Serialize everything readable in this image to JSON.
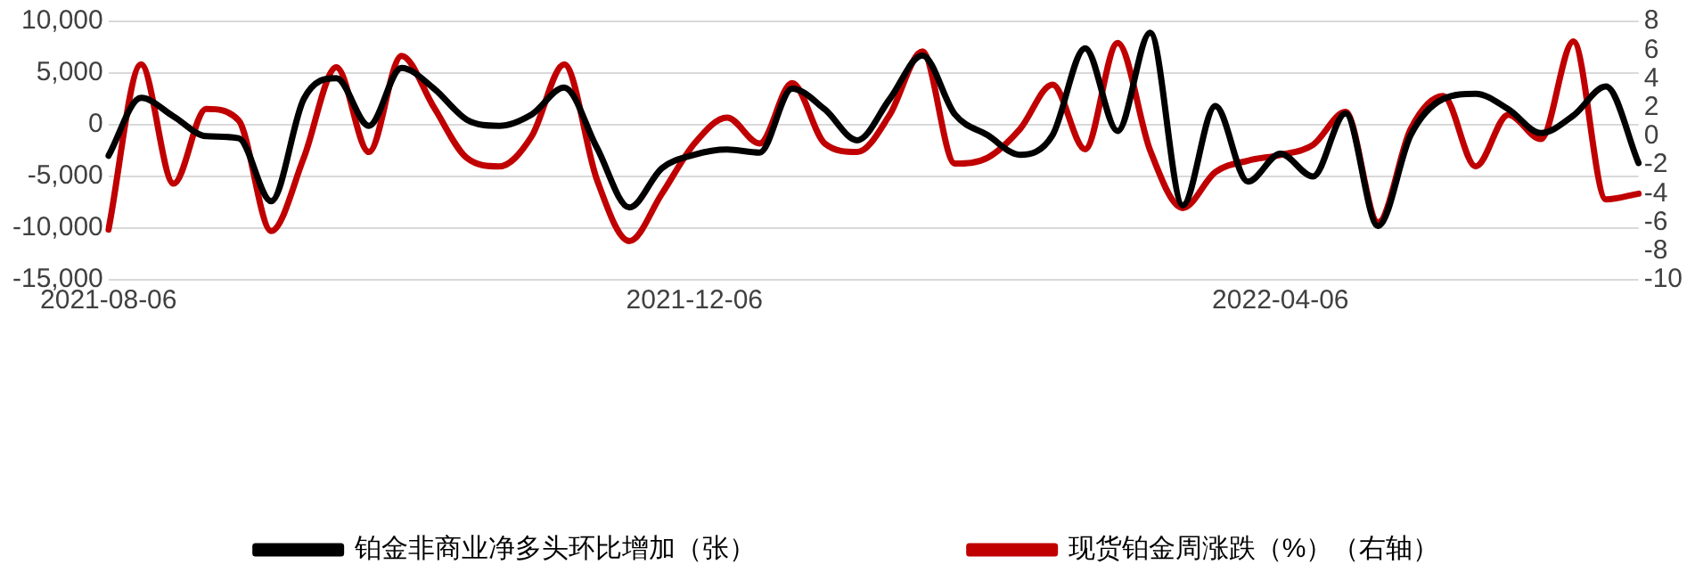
{
  "chart_data": {
    "type": "line",
    "categories": [
      "2021-08-06",
      null,
      null,
      null,
      null,
      null,
      null,
      null,
      null,
      null,
      null,
      null,
      null,
      null,
      null,
      null,
      null,
      null,
      "2021-12-06",
      null,
      null,
      null,
      null,
      null,
      null,
      null,
      null,
      null,
      null,
      null,
      null,
      null,
      null,
      null,
      null,
      null,
      "2022-04-06",
      null,
      null,
      null,
      null,
      null,
      null,
      null,
      null,
      null,
      null,
      null
    ],
    "series": [
      {
        "name": "铂金非商业净多头环比增加（张）",
        "color": "#000000",
        "values": [
          -3000,
          2600,
          800,
          -1100,
          -1300,
          -7400,
          2500,
          4500,
          -100,
          5500,
          3500,
          500,
          -100,
          1000,
          3600,
          -2200,
          -8000,
          -4200,
          -2900,
          -2400,
          -2700,
          3500,
          1500,
          -1500,
          2500,
          6700,
          1000,
          -1000,
          -2900,
          -1000,
          7400,
          -600,
          8900,
          -7800,
          1800,
          -5500,
          -2800,
          -5000,
          1100,
          -9800,
          -1000,
          2500,
          3000,
          1500,
          -800,
          900,
          3700,
          -3700
        ]
      },
      {
        "name": "现货铂金周涨跌（%）（右轴）",
        "color": "#c00000",
        "axis": "y2",
        "values": [
          -6.5,
          5.0,
          -3.3,
          1.9,
          1.1,
          -6.6,
          -1.5,
          4.8,
          -1.1,
          5.6,
          2.0,
          -1.5,
          -2.1,
          0,
          5.0,
          -3.0,
          -7.3,
          -4.0,
          -0.5,
          1.3,
          -0.5,
          3.7,
          -0.5,
          -1.1,
          1.5,
          5.9,
          -1.9,
          -1.5,
          0.5,
          3.6,
          -0.9,
          6.5,
          -1.0,
          -5.0,
          -2.5,
          -1.7,
          -1.3,
          -0.6,
          1.7,
          -6.0,
          0.5,
          2.8,
          -2.1,
          1.5,
          -0.2,
          6.6,
          -4.4,
          -4.0
        ]
      }
    ],
    "ylim": [
      -15000,
      10000
    ],
    "yticks": [
      {
        "value": -15000,
        "label": "-15,000"
      },
      {
        "value": -10000,
        "label": "-10,000"
      },
      {
        "value": -5000,
        "label": "-5,000"
      },
      0,
      {
        "value": 5000,
        "label": "5,000"
      },
      {
        "value": 10000,
        "label": "10,000"
      }
    ],
    "y2lim": [
      -10,
      8
    ],
    "y2ticks": [
      -10,
      -8,
      -6,
      -4,
      -2,
      0,
      2,
      4,
      6,
      8
    ],
    "grid": "y",
    "legend": "bottom",
    "marker": "none",
    "line_style": "solid"
  }
}
